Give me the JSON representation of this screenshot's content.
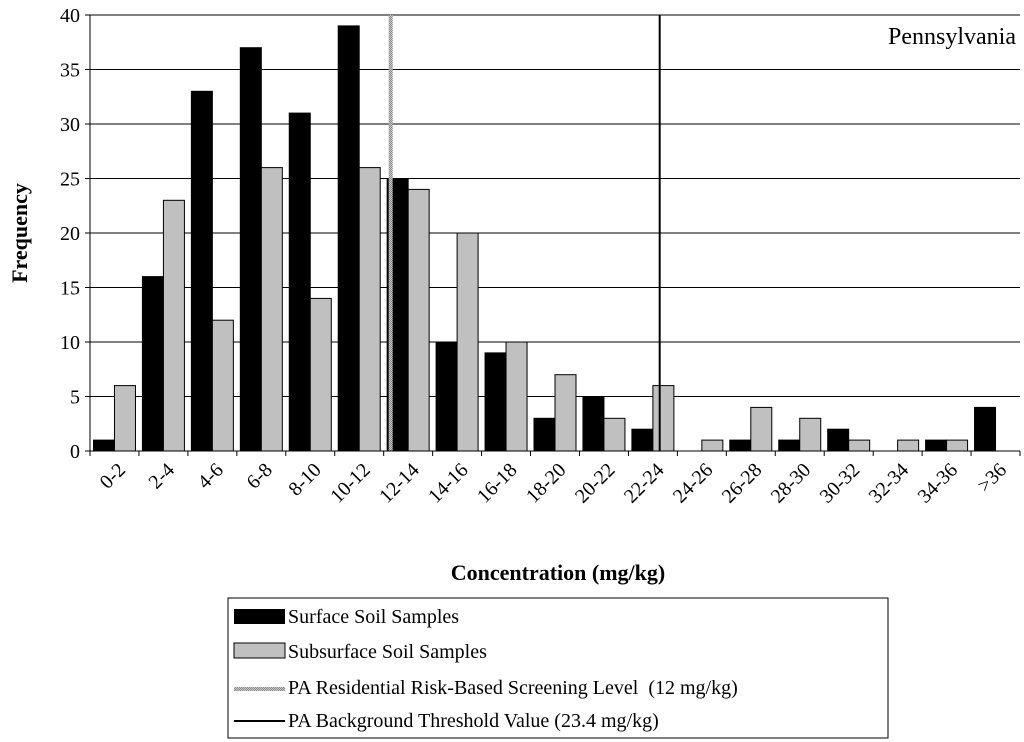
{
  "chart_data": {
    "type": "bar",
    "title": "",
    "region_label": "Pennsylvania",
    "xlabel": "Concentration (mg/kg)",
    "ylabel": "Frequency",
    "ylim": [
      0,
      40
    ],
    "yticks": [
      0,
      5,
      10,
      15,
      20,
      25,
      30,
      35,
      40
    ],
    "grid": true,
    "legend_position": "bottom",
    "categories": [
      "0-2",
      "2-4",
      "4-6",
      "6-8",
      "8-10",
      "10-12",
      "12-14",
      "14-16",
      "16-18",
      "18-20",
      "20-22",
      "22-24",
      "24-26",
      "26-28",
      "28-30",
      "30-32",
      "32-34",
      "34-36",
      ">36"
    ],
    "series": [
      {
        "name": "Surface Soil Samples",
        "color": "#000000",
        "values": [
          1,
          16,
          33,
          37,
          31,
          39,
          25,
          10,
          9,
          3,
          5,
          2,
          0,
          1,
          1,
          2,
          0,
          1,
          4
        ]
      },
      {
        "name": "Subsurface Soil Samples",
        "color": "#c0c0c0",
        "values": [
          6,
          23,
          12,
          26,
          14,
          26,
          24,
          20,
          10,
          7,
          3,
          6,
          1,
          4,
          3,
          1,
          1,
          1,
          0
        ]
      }
    ],
    "reference_lines": [
      {
        "name": "PA Residential Risk-Based Screening Level  (12 mg/kg)",
        "value": 12,
        "style": "hatched-gray"
      },
      {
        "name": "PA Background Threshold Value (23.4 mg/kg)",
        "value": 23.4,
        "style": "solid-black"
      }
    ]
  }
}
